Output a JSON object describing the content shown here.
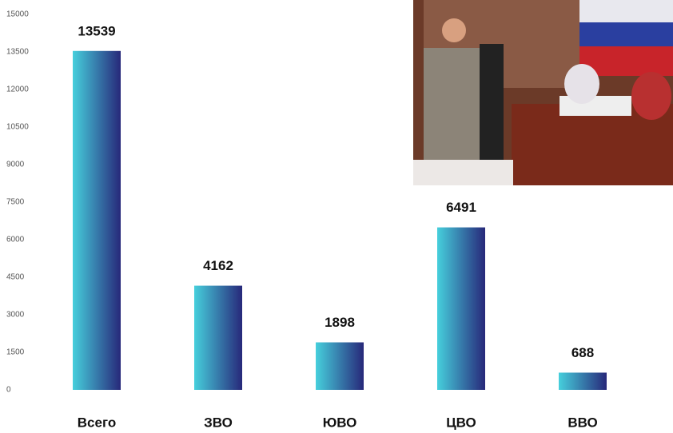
{
  "chart_data": {
    "type": "bar",
    "categories": [
      "Всего",
      "ЗВО",
      "ЮВО",
      "ЦВО",
      "ВВО"
    ],
    "values": [
      13539,
      4162,
      1898,
      6491,
      688
    ],
    "colors": [
      "#46cfdc",
      "#27287a"
    ],
    "ylim": [
      0,
      15000
    ],
    "yticks": [
      0,
      1500,
      3000,
      4500,
      6000,
      7500,
      9000,
      10500,
      12000,
      13500,
      15000
    ],
    "grid": false
  }
}
